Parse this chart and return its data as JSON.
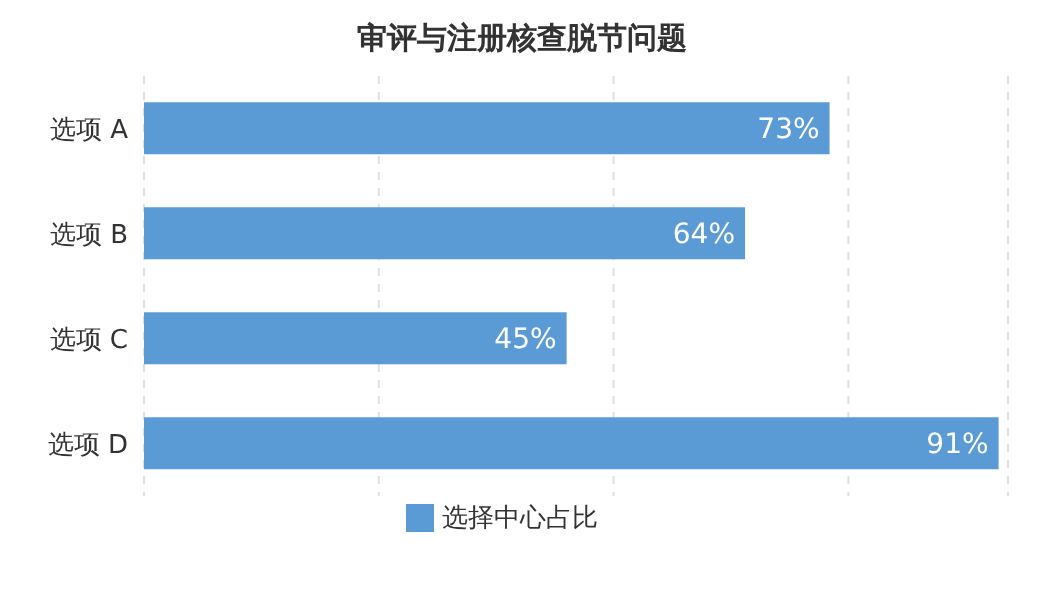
{
  "chart_data": {
    "type": "bar",
    "orientation": "horizontal",
    "title": "审评与注册核查脱节问题",
    "categories": [
      "选项 A",
      "选项 B",
      "选项 C",
      "选项 D"
    ],
    "series": [
      {
        "name": "选择中心占比",
        "color": "#5b9bd5",
        "values": [
          73,
          64,
          45,
          91
        ],
        "value_labels": [
          "73%",
          "64%",
          "45%",
          "91%"
        ]
      }
    ],
    "xlim": [
      0,
      92
    ],
    "grid": "x",
    "legend": "bottom"
  }
}
